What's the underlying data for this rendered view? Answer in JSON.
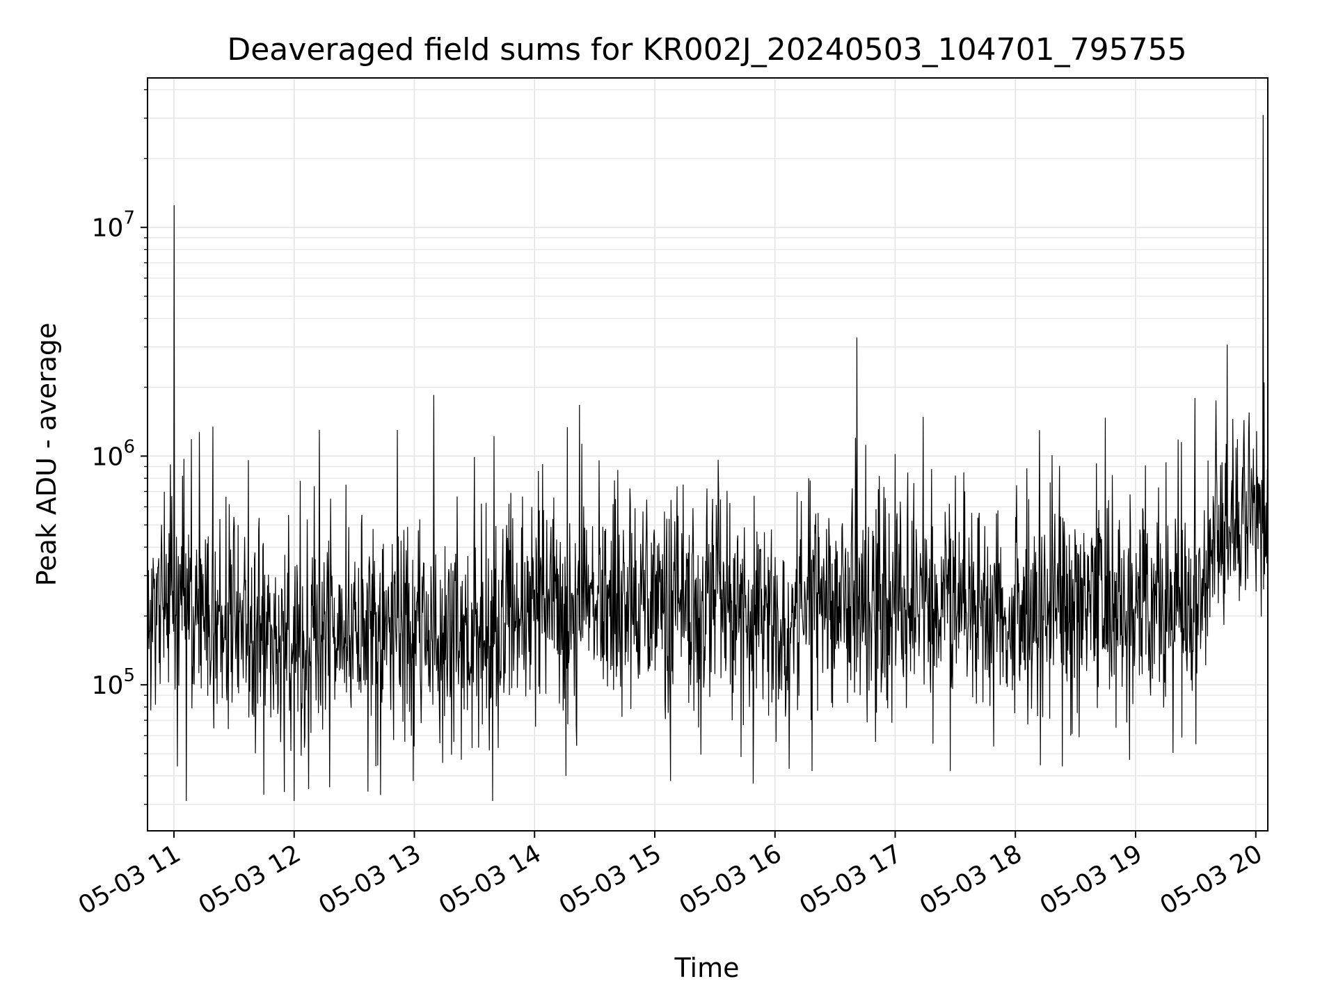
{
  "chart_data": {
    "type": "line",
    "title": "Deaveraged field sums for KR002J_20240503_104701_795755",
    "xlabel": "Time",
    "ylabel": "Peak ADU - average",
    "x_axis_unit": "hours (time of day on 2024-05-03)",
    "xlim": [
      10.78,
      20.1
    ],
    "ylim": [
      23000,
      45000000
    ],
    "yscale": "log",
    "grid": true,
    "line_color": "#000000",
    "x_ticks": [
      {
        "value": 11,
        "label": "05-03 11"
      },
      {
        "value": 12,
        "label": "05-03 12"
      },
      {
        "value": 13,
        "label": "05-03 13"
      },
      {
        "value": 14,
        "label": "05-03 14"
      },
      {
        "value": 15,
        "label": "05-03 15"
      },
      {
        "value": 16,
        "label": "05-03 16"
      },
      {
        "value": 17,
        "label": "05-03 17"
      },
      {
        "value": 18,
        "label": "05-03 18"
      },
      {
        "value": 19,
        "label": "05-03 19"
      },
      {
        "value": 20,
        "label": "05-03 20"
      }
    ],
    "y_ticks": [
      {
        "value": 100000,
        "base": "10",
        "exp": "5"
      },
      {
        "value": 1000000,
        "base": "10",
        "exp": "6"
      },
      {
        "value": 10000000,
        "base": "10",
        "exp": "7"
      }
    ],
    "baseline_profile": {
      "x": [
        10.78,
        11.0,
        11.5,
        12.0,
        12.5,
        13.0,
        13.5,
        14.0,
        14.5,
        15.0,
        15.5,
        16.0,
        16.5,
        17.0,
        17.5,
        18.0,
        18.5,
        19.0,
        19.4,
        19.55,
        19.6,
        19.8,
        20.0,
        20.1
      ],
      "y": [
        200000,
        230000,
        170000,
        160000,
        160000,
        170000,
        160000,
        200000,
        220000,
        230000,
        220000,
        200000,
        220000,
        210000,
        220000,
        200000,
        230000,
        220000,
        210000,
        260000,
        380000,
        520000,
        540000,
        500000
      ]
    },
    "spikes": {
      "x": [
        11.0,
        10.97,
        11.07,
        11.62,
        12.05,
        12.43,
        12.86,
        13.16,
        14.03,
        15.82,
        16.28,
        16.68,
        16.34,
        19.67,
        19.72,
        20.06
      ],
      "y": [
        12500000,
        920000,
        820000,
        960000,
        780000,
        750000,
        1300000,
        1850000,
        860000,
        540000,
        800000,
        3300000,
        560000,
        1750000,
        940000,
        31000000
      ]
    },
    "dips": {
      "x": [
        11.03,
        11.92,
        12.12,
        12.72,
        12.99,
        14.26,
        15.13,
        15.82,
        16.31,
        17.46,
        18.39,
        18.95,
        19.5
      ],
      "y": [
        44000,
        34000,
        35000,
        33000,
        38000,
        40000,
        38000,
        37000,
        42000,
        42000,
        44000,
        47000,
        55000
      ]
    },
    "noise_model": {
      "seed": 20240503,
      "points": 2400,
      "log_sigma": 0.42
    }
  }
}
